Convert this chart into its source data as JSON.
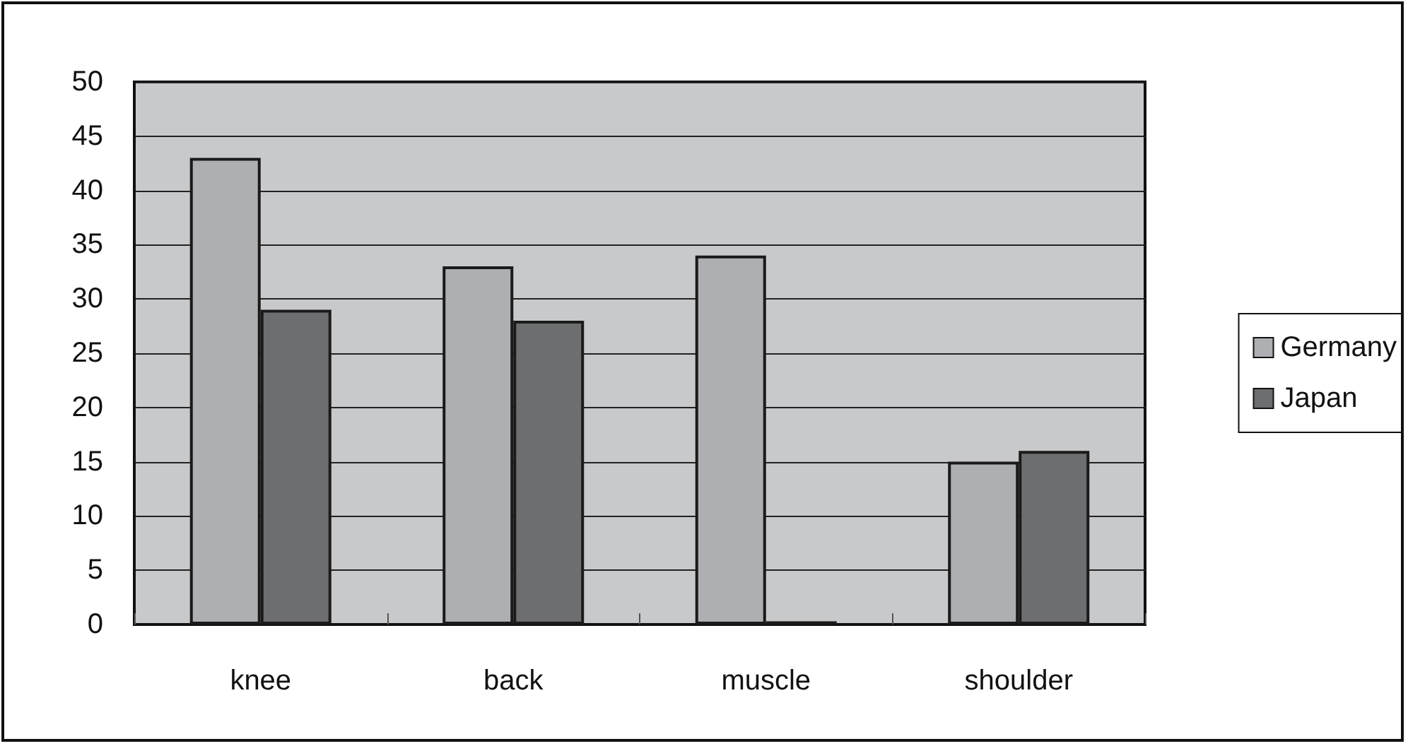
{
  "chart_data": {
    "type": "bar",
    "categories": [
      "knee",
      "back",
      "muscle",
      "shoulder"
    ],
    "series": [
      {
        "name": "Germany",
        "color": "#aeafb2",
        "values": [
          43,
          33,
          34,
          15
        ]
      },
      {
        "name": "Japan",
        "color": "#6d6e70",
        "values": [
          29,
          28,
          0.3,
          16
        ]
      }
    ],
    "ylim": [
      0,
      50
    ],
    "yticks": [
      0,
      5,
      10,
      15,
      20,
      25,
      30,
      35,
      40,
      45,
      50
    ],
    "grid": "y",
    "legend": "right"
  }
}
